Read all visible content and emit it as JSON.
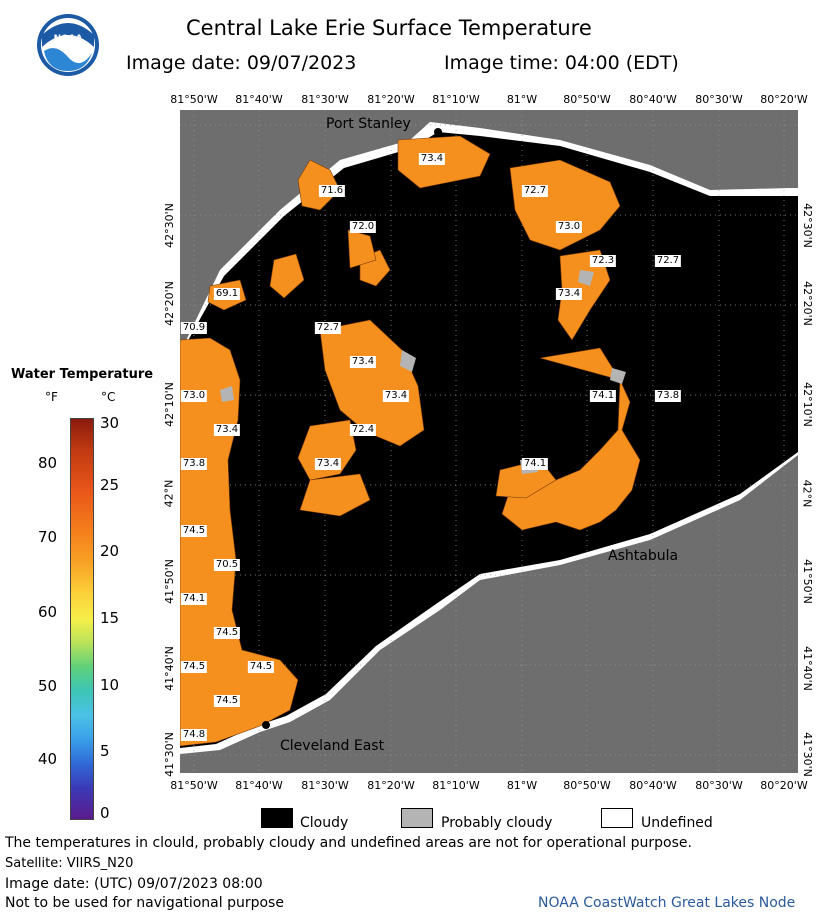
{
  "header": {
    "title": "Central Lake Erie Surface Temperature",
    "image_date_label": "Image date: 09/07/2023",
    "image_time_label": "Image time: 04:00 (EDT)",
    "logo_text": "NOAA"
  },
  "axes": {
    "lon_ticks": [
      "81°50'W",
      "81°40'W",
      "81°30'W",
      "81°20'W",
      "81°10'W",
      "81°W",
      "80°50'W",
      "80°40'W",
      "80°30'W",
      "80°20'W"
    ],
    "lat_ticks": [
      "42°30'N",
      "42°20'N",
      "42°10'N",
      "42°N",
      "41°50'N",
      "41°40'N",
      "41°30'N"
    ]
  },
  "places": {
    "port_stanley": "Port Stanley",
    "ashtabula": "Ashtabula",
    "cleveland_east": "Cleveland East"
  },
  "temperature_labels": [
    "73.4",
    "71.6",
    "72.0",
    "72.7",
    "73.0",
    "72.3",
    "72.7",
    "69.1",
    "73.4",
    "70.9",
    "72.7",
    "73.4",
    "73.4",
    "72.4",
    "73.8",
    "73.4",
    "74.1",
    "74.1",
    "73.8",
    "74.5",
    "70.5",
    "74.1",
    "74.5",
    "74.5",
    "74.5",
    "74.5",
    "74.8",
    "73.0",
    "73.4"
  ],
  "legend": {
    "title": "Water Temperature",
    "unit_f": "°F",
    "unit_c": "°C",
    "f_ticks": [
      "80",
      "70",
      "60",
      "50",
      "40"
    ],
    "c_ticks": [
      "30",
      "25",
      "20",
      "15",
      "10",
      "5",
      "0"
    ],
    "cloudy": "Cloudy",
    "probably_cloudy": "Probably cloudy",
    "undefined": "Undefined"
  },
  "colors": {
    "land": "#6e6e6e",
    "cloud": "#000000",
    "probably_cloudy": "#b4b4b4",
    "undefined": "#ffffff",
    "water_warm": "#f5901e"
  },
  "footer": {
    "note": "The temperatures in clould, probably cloudy and undefined areas are not for operational purpose.",
    "satellite": "Satellite: VIIRS_N20",
    "image_date_utc": "Image date: (UTC) 09/07/2023  08:00",
    "navigation": "Not to be used for navigational purpose",
    "credit": "NOAA CoastWatch Great Lakes Node"
  }
}
